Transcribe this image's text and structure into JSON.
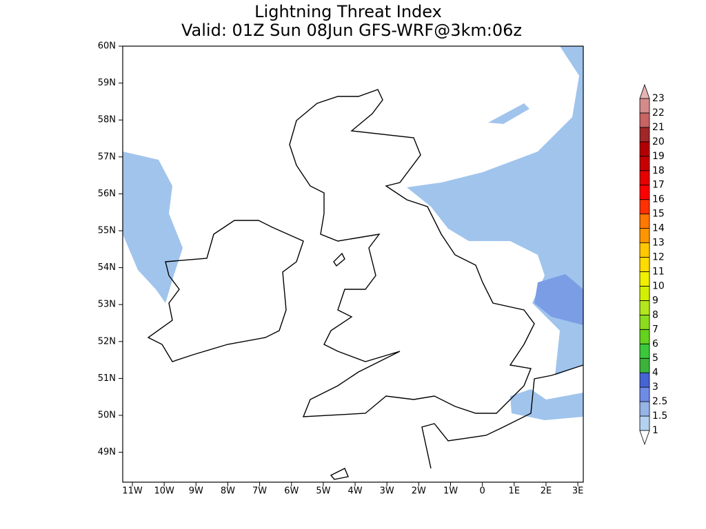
{
  "title": "Lightning Threat Index",
  "subtitle": "Valid: 01Z Sun 08Jun GFS-WRF@3km:06z",
  "lat_labels": [
    "60N",
    "59N",
    "58N",
    "57N",
    "56N",
    "55N",
    "54N",
    "53N",
    "52N",
    "51N",
    "50N",
    "49N"
  ],
  "lon_labels": [
    "11W",
    "10W",
    "9W",
    "8W",
    "7W",
    "6W",
    "5W",
    "4W",
    "3W",
    "2W",
    "1W",
    "0",
    "1E",
    "2E",
    "3E"
  ],
  "colorbar": {
    "levels": [
      1,
      1.5,
      2.5,
      3,
      4,
      5,
      6,
      7,
      8,
      9,
      10,
      11,
      12,
      13,
      14,
      15,
      16,
      17,
      18,
      19,
      20,
      21,
      22,
      23
    ],
    "colors": [
      "#b4d2f0",
      "#96b4e6",
      "#6e8ce6",
      "#4664d2",
      "#3cb43c",
      "#3cc83c",
      "#64d21e",
      "#8cdc1e",
      "#b4e61e",
      "#d2f000",
      "#f0f000",
      "#ffdc00",
      "#ffc800",
      "#ff9600",
      "#ff7800",
      "#ff3200",
      "#ff0000",
      "#e60000",
      "#c80000",
      "#b40000",
      "#a02828",
      "#c86464",
      "#d28c8c"
    ],
    "over_color": "#e6b4b4",
    "under_color": "#ffffff"
  }
}
